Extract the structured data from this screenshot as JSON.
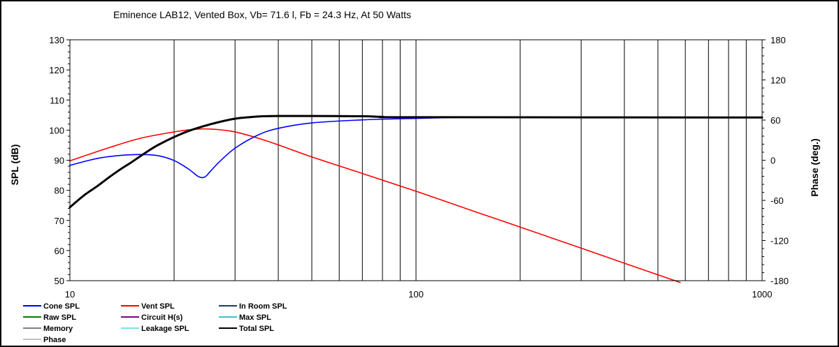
{
  "chart_data": {
    "type": "line",
    "title": "Eminence LAB12,  Vented Box, Vb= 71.6 l,  Fb = 24.3 Hz,  At 50 Watts",
    "xlabel": "",
    "ylabel": "SPL (dB)",
    "y2label": "Phase (deg.)",
    "xscale": "log",
    "xlim": [
      10,
      1000
    ],
    "ylim": [
      50,
      130
    ],
    "y2lim": [
      -180,
      180
    ],
    "x_ticks": [
      "10",
      "100",
      "1000"
    ],
    "y_ticks": [
      "50",
      "60",
      "70",
      "80",
      "90",
      "100",
      "110",
      "120",
      "130"
    ],
    "y2_ticks": [
      "-180",
      "-120",
      "-60",
      "0",
      "60",
      "120",
      "180"
    ],
    "grid": "vertical",
    "series": [
      {
        "name": "Cone SPL",
        "color": "#0000ff",
        "x": [
          10,
          12,
          14,
          16,
          18,
          20,
          22,
          23.5,
          24.5,
          25.5,
          27,
          30,
          35,
          40,
          50,
          70,
          100,
          130
        ],
        "y": [
          88.3,
          90.6,
          91.6,
          91.9,
          91.5,
          89.9,
          87.1,
          84.6,
          84.4,
          86.4,
          89.4,
          94.0,
          98.4,
          100.6,
          102.4,
          103.4,
          103.9,
          104.2
        ]
      },
      {
        "name": "Vent SPL",
        "color": "#ff0000",
        "x": [
          10,
          13,
          16,
          20,
          23,
          26,
          30,
          35,
          40,
          50,
          70,
          100,
          150,
          200,
          300,
          400,
          580
        ],
        "y": [
          89.8,
          94.2,
          97.3,
          99.4,
          100.3,
          100.3,
          99.4,
          97.3,
          95.1,
          91.1,
          85.6,
          79.7,
          72.7,
          67.8,
          60.8,
          55.8,
          49.4
        ]
      },
      {
        "name": "Total SPL",
        "color": "#000000",
        "x": [
          10,
          11,
          12,
          13,
          14,
          15,
          16,
          17,
          18,
          20,
          22,
          24.3,
          27,
          30,
          33,
          36,
          40,
          50,
          70,
          80,
          100,
          1000
        ],
        "y": [
          74.4,
          78.4,
          81.4,
          84.4,
          87.0,
          89.2,
          91.4,
          93.4,
          95.1,
          97.7,
          99.7,
          101.3,
          102.7,
          103.8,
          104.3,
          104.6,
          104.7,
          104.7,
          104.6,
          104.4,
          104.3,
          104.2
        ]
      }
    ],
    "legend": {
      "placement": "bottom",
      "items": [
        {
          "label": "Cone SPL",
          "color": "#0000ff"
        },
        {
          "label": "Vent SPL",
          "color": "#ff0000"
        },
        {
          "label": "In Room SPL",
          "color": "#1f3b5a"
        },
        {
          "label": "Raw SPL",
          "color": "#008000"
        },
        {
          "label": "Circuit H(s)",
          "color": "#800080"
        },
        {
          "label": "Max SPL",
          "color": "#40c0c0"
        },
        {
          "label": "Memory",
          "color": "#808080"
        },
        {
          "label": "Leakage SPL",
          "color": "#80e0f0"
        },
        {
          "label": "Total SPL",
          "color": "#000000"
        },
        {
          "label": "Phase",
          "color": "#c0c0c0"
        }
      ]
    }
  }
}
